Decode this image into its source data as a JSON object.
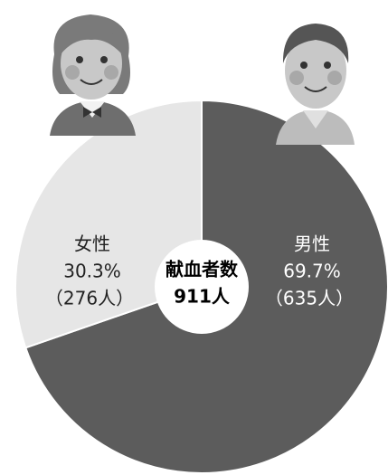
{
  "chart_data": {
    "type": "pie",
    "categories": [
      "男性",
      "女性"
    ],
    "values": [
      69.7,
      30.3
    ],
    "value_labels": [
      "69.7%",
      "30.3%"
    ],
    "count_labels": [
      "（635人）",
      "（276人）"
    ],
    "colors": [
      "#5c5c5c",
      "#e6e6e6"
    ],
    "center_title": "献血者数",
    "center_label": "911人"
  }
}
